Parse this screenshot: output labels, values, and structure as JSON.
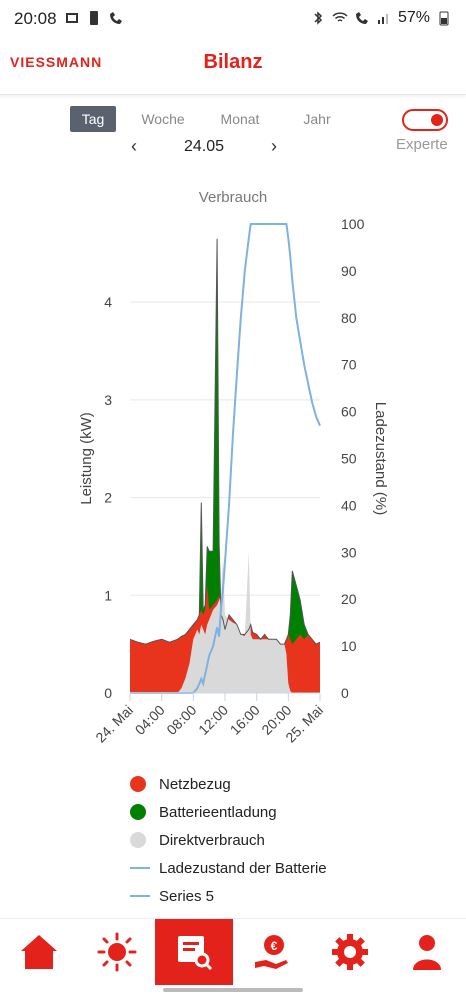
{
  "status_bar": {
    "time": "20:08",
    "battery": "57%"
  },
  "app": {
    "logo": "VIESSMANN",
    "title": "Bilanz",
    "brand_color": "#e3231b"
  },
  "period_tabs": [
    {
      "label": "Tag",
      "active": true
    },
    {
      "label": "Woche",
      "active": false
    },
    {
      "label": "Monat",
      "active": false
    },
    {
      "label": "Jahr",
      "active": false
    }
  ],
  "date_nav": {
    "date": "24.05"
  },
  "expert_toggle": {
    "label": "Experte",
    "on": true
  },
  "chart_data": {
    "type": "area",
    "title": "Verbrauch",
    "ylabel": "Leistung (kW)",
    "y2label": "Ladezustand (%)",
    "ylim": [
      0,
      4.8
    ],
    "y2lim": [
      0,
      100
    ],
    "yticks": [
      "0",
      "1",
      "2",
      "3",
      "4"
    ],
    "y2ticks": [
      "0",
      "10",
      "20",
      "30",
      "40",
      "50",
      "60",
      "70",
      "80",
      "90",
      "100"
    ],
    "xticks": [
      "24. Mai",
      "04:00",
      "08:00",
      "12:00",
      "16:00",
      "20:00",
      "25. Mai"
    ],
    "x_hours": [
      0,
      1,
      2,
      3,
      4,
      5,
      6,
      6.5,
      7,
      7.5,
      8,
      8.5,
      8.75,
      9,
      9.25,
      9.5,
      9.75,
      10,
      10.5,
      11,
      11.25,
      11.5,
      11.75,
      12,
      12.5,
      13,
      13.5,
      14,
      14.5,
      15,
      15.25,
      15.5,
      16,
      16.5,
      17,
      17.5,
      18,
      18.5,
      19,
      19.5,
      19.75,
      20,
      20.25,
      20.5,
      21,
      21.5,
      22,
      22.5,
      23,
      23.5,
      24
    ],
    "series": [
      {
        "name": "Netzbezug",
        "color": "#e8341d",
        "values": [
          0.55,
          0.52,
          0.5,
          0.53,
          0.55,
          0.52,
          0.55,
          0.58,
          0.6,
          0.65,
          0.7,
          0.75,
          0.8,
          0.85,
          0.8,
          0.85,
          1.1,
          0.85,
          0.9,
          0.95,
          1.0,
          0.8,
          0.75,
          0.65,
          0.8,
          0.75,
          0.7,
          0.6,
          0.6,
          0.65,
          0.7,
          0.62,
          0.6,
          0.55,
          0.6,
          0.55,
          0.55,
          0.55,
          0.5,
          0.5,
          0.55,
          0.6,
          0.55,
          0.5,
          0.55,
          0.6,
          0.55,
          0.6,
          0.55,
          0.5,
          0.52
        ]
      },
      {
        "name": "Batterieentladung",
        "color": "#008000",
        "values": [
          0.55,
          0.52,
          0.5,
          0.53,
          0.55,
          0.52,
          0.55,
          0.58,
          0.6,
          0.65,
          0.7,
          0.75,
          0.8,
          1.95,
          0.85,
          0.9,
          1.5,
          1.45,
          1.45,
          4.65,
          1.55,
          0.8,
          0.75,
          0.65,
          0.8,
          0.75,
          0.7,
          0.6,
          0.6,
          0.65,
          0.7,
          0.62,
          0.6,
          0.55,
          0.6,
          0.55,
          0.55,
          0.55,
          0.5,
          0.5,
          0.55,
          0.6,
          0.8,
          1.25,
          1.1,
          0.95,
          0.7,
          0.6,
          0.55,
          0.5,
          0.52
        ]
      },
      {
        "name": "Direktverbrauch",
        "color": "#d9d9d9",
        "values": [
          0,
          0,
          0,
          0,
          0,
          0,
          0,
          0.05,
          0.15,
          0.3,
          0.55,
          0.65,
          0.6,
          0.7,
          0.65,
          0.6,
          0.7,
          0.75,
          0.85,
          0.9,
          0.95,
          1.0,
          1.4,
          0.8,
          0.75,
          0.72,
          0.7,
          0.6,
          0.58,
          1.45,
          0.6,
          0.55,
          0.55,
          0.55,
          0.55,
          0.55,
          0.55,
          0.55,
          0.5,
          0.5,
          0.4,
          0.1,
          0.02,
          0,
          0,
          0,
          0,
          0,
          0,
          0,
          0
        ]
      },
      {
        "name": "Ladezustand der Batterie",
        "color": "#7fb2df",
        "values": [
          0,
          0,
          0,
          0,
          0,
          0,
          0,
          0,
          0,
          0,
          0,
          1,
          2,
          3,
          2,
          4,
          6,
          8,
          10,
          14,
          12,
          18,
          22,
          28,
          40,
          55,
          68,
          80,
          90,
          97,
          100,
          100,
          100,
          100,
          100,
          100,
          100,
          100,
          100,
          100,
          100,
          97,
          93,
          88,
          80,
          75,
          70,
          66,
          62,
          59,
          57
        ]
      },
      {
        "name": "Series 5",
        "color": "#7fb2df",
        "values": []
      }
    ]
  },
  "legend": [
    {
      "label": "Netzbezug",
      "color": "#e8341d",
      "kind": "dot"
    },
    {
      "label": "Batterieentladung",
      "color": "#008000",
      "kind": "dot"
    },
    {
      "label": "Direktverbrauch",
      "color": "#d9d9d9",
      "kind": "dot"
    },
    {
      "label": "Ladezustand der Batterie",
      "color": "#7fb2df",
      "kind": "line"
    },
    {
      "label": "Series 5",
      "color": "#7fb2df",
      "kind": "line"
    }
  ],
  "bottom_nav": [
    {
      "icon": "home-icon",
      "active": false
    },
    {
      "icon": "sun-icon",
      "active": false
    },
    {
      "icon": "report-search-icon",
      "active": true
    },
    {
      "icon": "hand-euro-icon",
      "active": false
    },
    {
      "icon": "gear-icon",
      "active": false
    },
    {
      "icon": "user-icon",
      "active": false
    }
  ]
}
